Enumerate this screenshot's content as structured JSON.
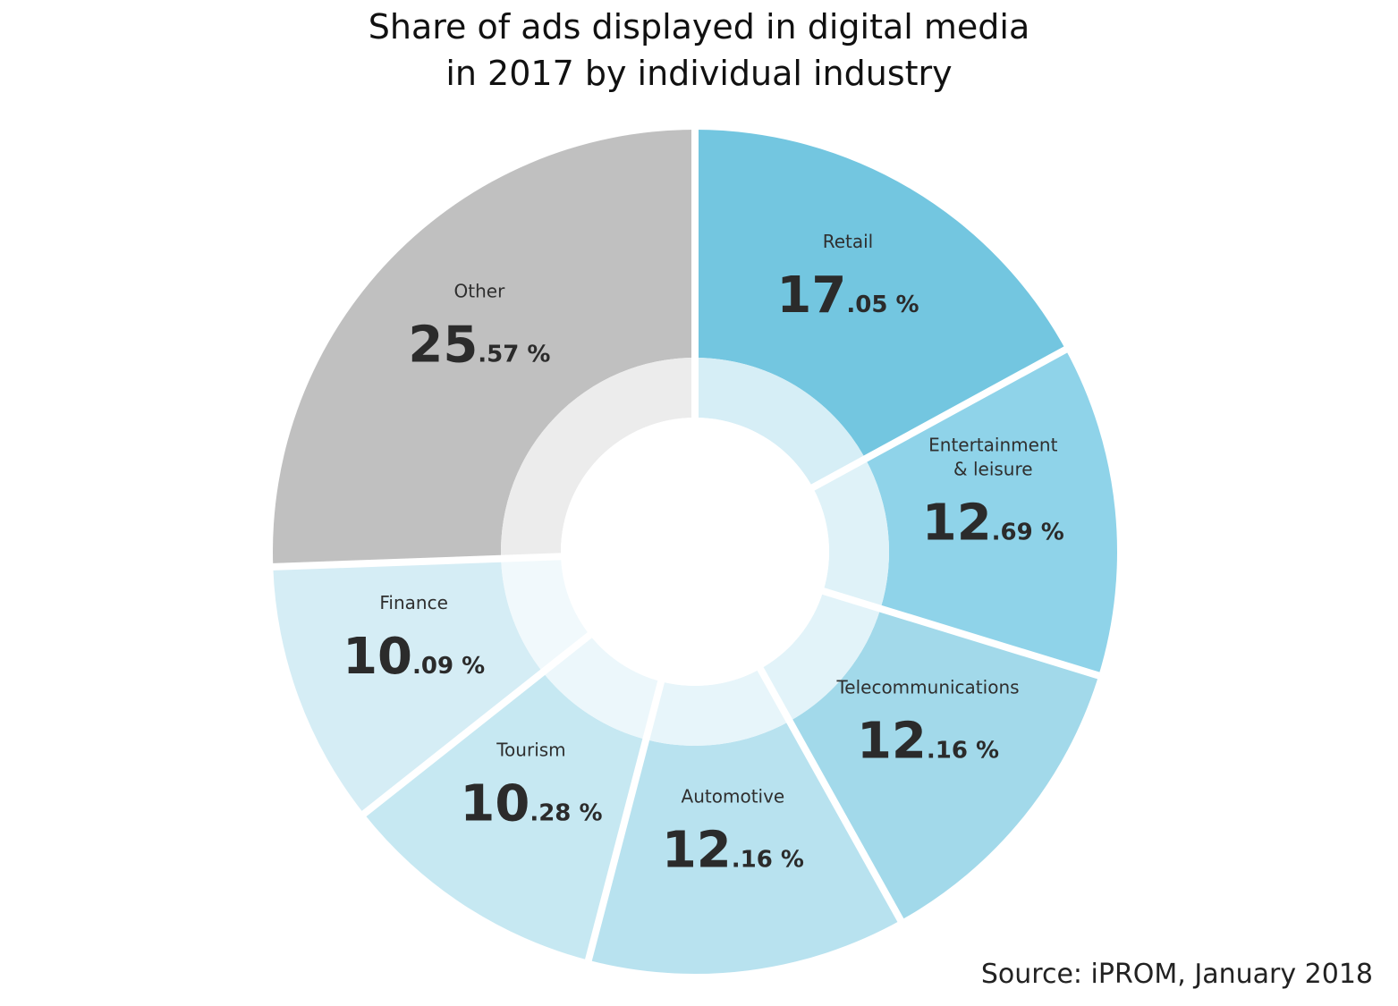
{
  "chart_data": {
    "type": "pie",
    "title_lines": [
      "Share of ads displayed in digital media",
      "in 2017 by individual industry"
    ],
    "source": "Source: iPROM, January 2018",
    "unit": "%",
    "slices": [
      {
        "label_lines": [
          "Retail"
        ],
        "value": 17.05,
        "int": "17",
        "dec": ".05 %",
        "color": "#73c6e0",
        "inner_color": "#d6eef6"
      },
      {
        "label_lines": [
          "Entertainment",
          "& leisure"
        ],
        "value": 12.69,
        "int": "12",
        "dec": ".69 %",
        "color": "#8fd3e9",
        "inner_color": "#dff2f8"
      },
      {
        "label_lines": [
          "Telecommunications"
        ],
        "value": 12.16,
        "int": "12",
        "dec": ".16 %",
        "color": "#a2d9ea",
        "inner_color": "#e2f3f9"
      },
      {
        "label_lines": [
          "Automotive"
        ],
        "value": 12.16,
        "int": "12",
        "dec": ".16 %",
        "color": "#b8e2ef",
        "inner_color": "#e7f5fa"
      },
      {
        "label_lines": [
          "Tourism"
        ],
        "value": 10.28,
        "int": "10",
        "dec": ".28 %",
        "color": "#c6e8f2",
        "inner_color": "#ecf7fb"
      },
      {
        "label_lines": [
          "Finance"
        ],
        "value": 10.09,
        "int": "10",
        "dec": ".09 %",
        "color": "#d5edf5",
        "inner_color": "#f1f9fc"
      },
      {
        "label_lines": [
          "Other"
        ],
        "value": 25.57,
        "int": "25",
        "dec": ".57 %",
        "color": "#c0c0c0",
        "inner_color": "#ececec"
      }
    ]
  }
}
